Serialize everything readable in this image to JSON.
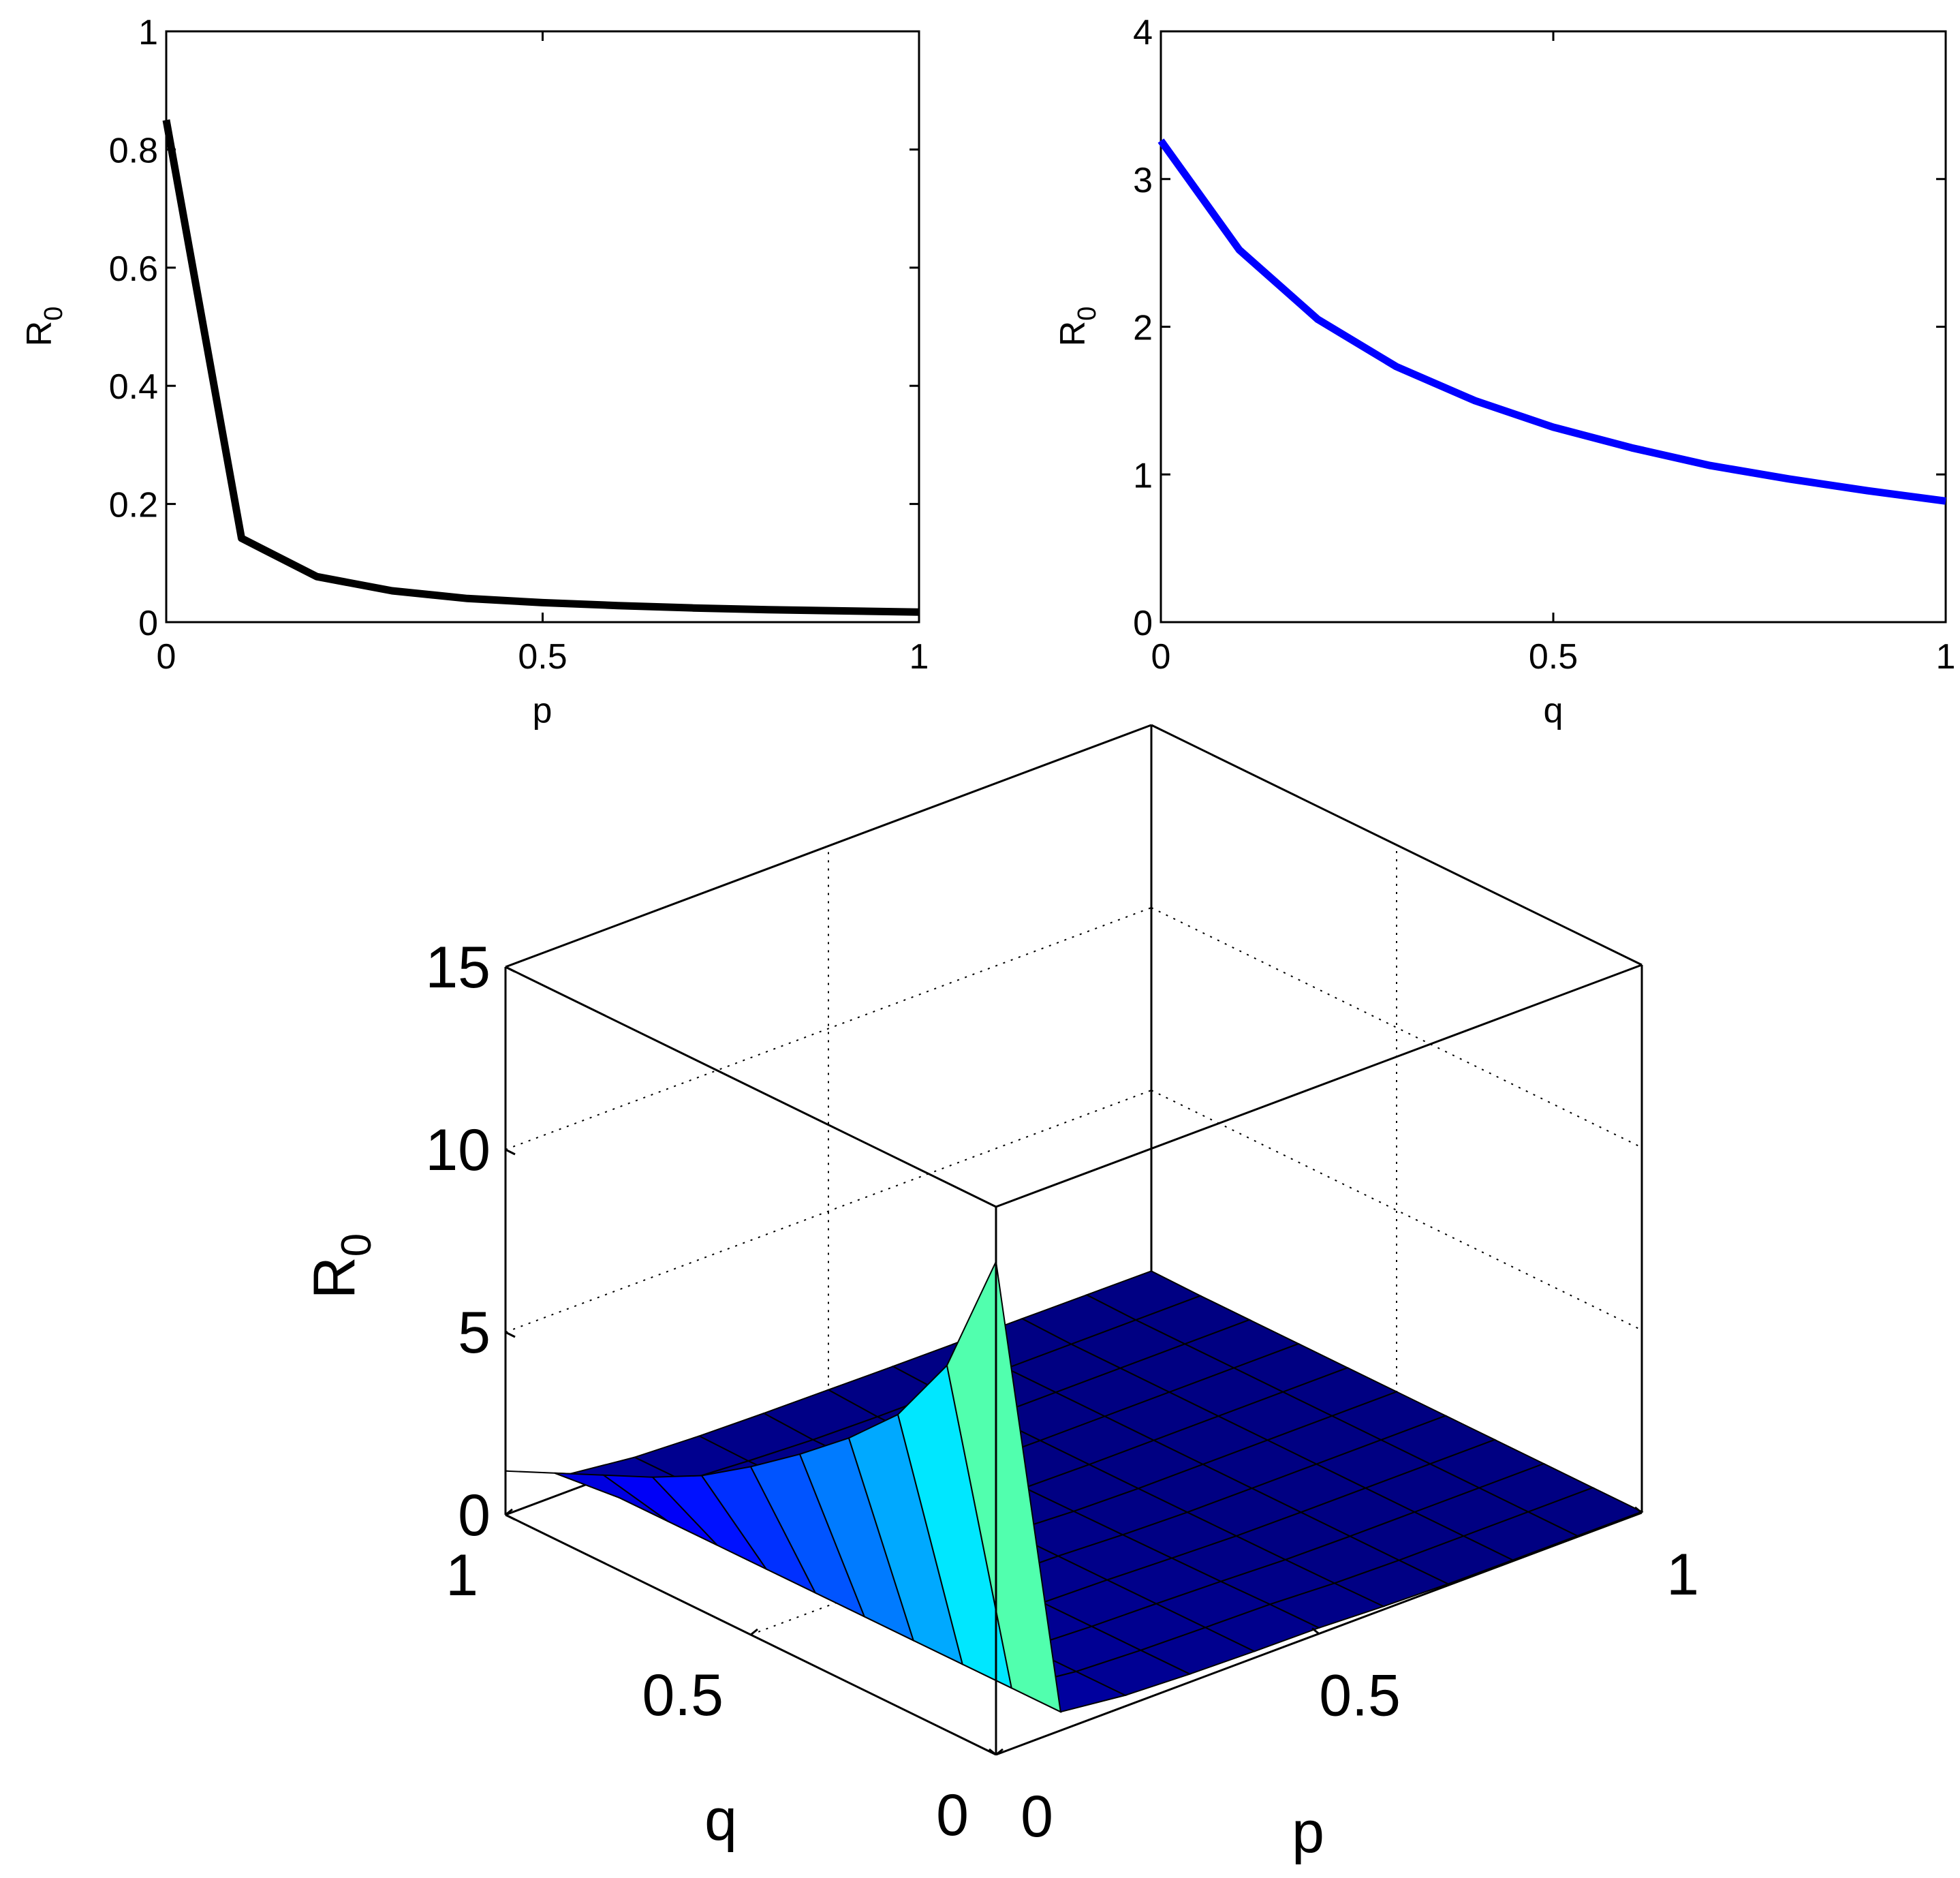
{
  "chart_data": [
    {
      "type": "line",
      "xlabel": "p",
      "ylabel": "R",
      "ylabel_sub": "0",
      "xlim": [
        0,
        1
      ],
      "ylim": [
        0,
        1
      ],
      "xticks": [
        0,
        0.5,
        1
      ],
      "xtick_labels": [
        "0",
        "0.5",
        "1"
      ],
      "yticks": [
        0,
        0.2,
        0.4,
        0.6,
        0.8,
        1
      ],
      "ytick_labels": [
        "0",
        "0.2",
        "0.4",
        "0.6",
        "0.8",
        "1"
      ],
      "grid": false,
      "series": [
        {
          "color": "#000000",
          "x": [
            0,
            0.1,
            0.2,
            0.3,
            0.4,
            0.5,
            0.6,
            0.7,
            0.8,
            0.9,
            1.0
          ],
          "y": [
            0.85,
            0.142,
            0.077,
            0.053,
            0.04,
            0.033,
            0.028,
            0.024,
            0.021,
            0.019,
            0.017
          ]
        }
      ]
    },
    {
      "type": "line",
      "xlabel": "q",
      "ylabel": "R",
      "ylabel_sub": "0",
      "xlim": [
        0,
        1
      ],
      "ylim": [
        0,
        4
      ],
      "xticks": [
        0,
        0.5,
        1
      ],
      "xtick_labels": [
        "0",
        "0.5",
        "1"
      ],
      "yticks": [
        0,
        1,
        2,
        3,
        4
      ],
      "ytick_labels": [
        "0",
        "1",
        "2",
        "3",
        "4"
      ],
      "grid": false,
      "series": [
        {
          "color": "#0000ff",
          "x": [
            0,
            0.1,
            0.2,
            0.3,
            0.4,
            0.5,
            0.6,
            0.7,
            0.8,
            0.9,
            1.0
          ],
          "y": [
            3.26,
            2.52,
            2.05,
            1.73,
            1.5,
            1.32,
            1.18,
            1.06,
            0.97,
            0.89,
            0.82
          ]
        }
      ]
    },
    {
      "type": "surface",
      "xlabel": "p",
      "ylabel": "q",
      "zlabel": "R",
      "zlabel_sub": "0",
      "xlim": [
        0,
        1
      ],
      "ylim": [
        0,
        1
      ],
      "zlim": [
        0,
        15
      ],
      "xticks": [
        0,
        0.5,
        1
      ],
      "xtick_labels": [
        "0",
        "0.5",
        "1"
      ],
      "yticks": [
        0,
        0.5,
        1
      ],
      "ytick_labels": [
        "0",
        "0.5",
        "1"
      ],
      "zticks": [
        0,
        5,
        10,
        15
      ],
      "ztick_labels": [
        "0",
        "5",
        "10",
        "15"
      ],
      "grid": true,
      "colormap": "jet",
      "p_grid": [
        0,
        0.1,
        0.2,
        0.3,
        0.4,
        0.5,
        0.6,
        0.7,
        0.8,
        0.9,
        1.0
      ],
      "q_grid": [
        0,
        0.1,
        0.2,
        0.3,
        0.4,
        0.5,
        0.6,
        0.7,
        0.8,
        0.9,
        1.0
      ],
      "p0_edge_values": [
        13.5,
        10.0,
        8.0,
        6.7,
        5.6,
        4.6,
        3.7,
        3.0,
        2.4,
        1.8,
        1.2
      ],
      "q1_edge_values": [
        2.7,
        0.46,
        0.25,
        0.17,
        0.13,
        0.11,
        0.09,
        0.08,
        0.07,
        0.06,
        0.05
      ]
    }
  ]
}
